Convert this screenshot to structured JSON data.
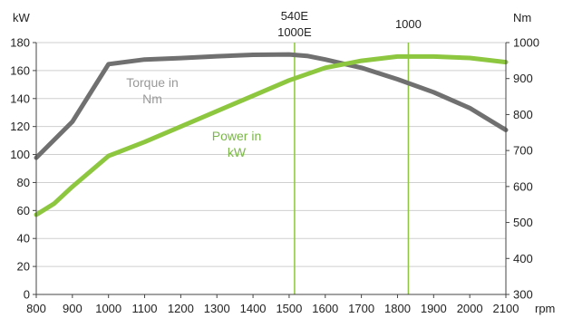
{
  "chart_data": {
    "type": "line",
    "x_unit": "rpm",
    "x_ticks": [
      800,
      900,
      1000,
      1100,
      1200,
      1300,
      1400,
      1500,
      1600,
      1700,
      1800,
      1900,
      2000,
      2100
    ],
    "xlim": [
      800,
      2100
    ],
    "left_axis": {
      "unit": "kW",
      "ylim": [
        0,
        180
      ],
      "ticks": [
        0,
        20,
        40,
        60,
        80,
        100,
        120,
        140,
        160,
        180
      ]
    },
    "right_axis": {
      "unit": "Nm",
      "ylim": [
        300,
        1000
      ],
      "ticks": [
        300,
        400,
        500,
        600,
        700,
        800,
        900,
        1000
      ]
    },
    "grid": "horizontal",
    "series": [
      {
        "label_lines": [
          "Torque in",
          "Nm"
        ],
        "axis": "right",
        "color": "#707070",
        "label_color": "#999999",
        "points": [
          [
            800,
            680
          ],
          [
            900,
            780
          ],
          [
            1000,
            940
          ],
          [
            1100,
            953
          ],
          [
            1200,
            957
          ],
          [
            1300,
            962
          ],
          [
            1400,
            966
          ],
          [
            1500,
            967
          ],
          [
            1550,
            963
          ],
          [
            1600,
            953
          ],
          [
            1700,
            930
          ],
          [
            1800,
            898
          ],
          [
            1900,
            862
          ],
          [
            2000,
            818
          ],
          [
            2100,
            757
          ]
        ]
      },
      {
        "label_lines": [
          "Power in",
          "kW"
        ],
        "axis": "left",
        "color": "#8dc63f",
        "label_color": "#7ab648",
        "points": [
          [
            800,
            57
          ],
          [
            850,
            65
          ],
          [
            900,
            77
          ],
          [
            1000,
            99
          ],
          [
            1100,
            109
          ],
          [
            1200,
            120
          ],
          [
            1300,
            131
          ],
          [
            1400,
            142
          ],
          [
            1500,
            153
          ],
          [
            1600,
            162
          ],
          [
            1700,
            167
          ],
          [
            1800,
            170
          ],
          [
            1900,
            170
          ],
          [
            2000,
            169
          ],
          [
            2100,
            166
          ]
        ]
      }
    ],
    "markers": [
      {
        "x": 1515,
        "label_lines": [
          "540E",
          "1000E"
        ],
        "color": "#8dc63f"
      },
      {
        "x": 1830,
        "label_lines": [
          "1000"
        ],
        "color": "#8dc63f"
      }
    ]
  }
}
